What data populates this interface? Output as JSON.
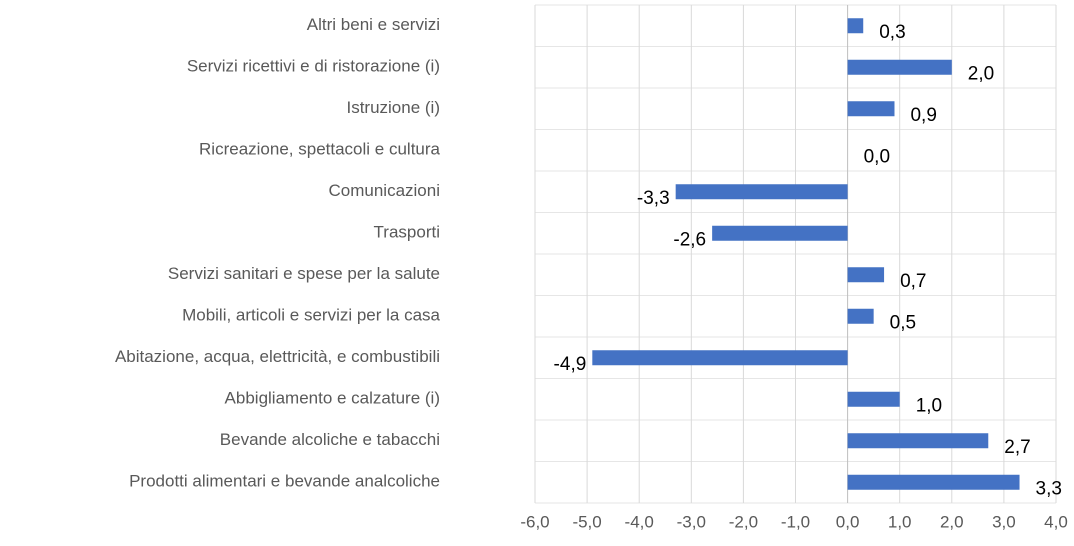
{
  "chart_data": {
    "type": "barh",
    "categories": [
      "Altri beni e servizi",
      "Servizi ricettivi e di ristorazione (i)",
      "Istruzione (i)",
      "Ricreazione, spettacoli e cultura",
      "Comunicazioni",
      "Trasporti",
      "Servizi sanitari e spese per la salute",
      "Mobili, articoli e servizi per la casa",
      "Abitazione, acqua, elettricità, e combustibili",
      "Abbigliamento e calzature (i)",
      "Bevande alcoliche e tabacchi",
      "Prodotti alimentari e bevande analcoliche"
    ],
    "values": [
      0.3,
      2.0,
      0.9,
      0.0,
      -3.3,
      -2.6,
      0.7,
      0.5,
      -4.9,
      1.0,
      2.7,
      3.3
    ],
    "value_labels": [
      "0,3",
      "2,0",
      "0,9",
      "0,0",
      "-3,3",
      "-2,6",
      "0,7",
      "0,5",
      "-4,9",
      "1,0",
      "2,7",
      "3,3"
    ],
    "color": "#4472c4",
    "xlim": [
      -6,
      4
    ],
    "xticks": [
      {
        "value": -6,
        "label": "-6,0"
      },
      {
        "value": -5,
        "label": "-5,0"
      },
      {
        "value": -4,
        "label": "-4,0"
      },
      {
        "value": -3,
        "label": "-3,0"
      },
      {
        "value": -2,
        "label": "-2,0"
      },
      {
        "value": -1,
        "label": "-1,0"
      },
      {
        "value": 0,
        "label": "0,0"
      },
      {
        "value": 1,
        "label": "1,0"
      },
      {
        "value": 2,
        "label": "2,0"
      },
      {
        "value": 3,
        "label": "3,0"
      },
      {
        "value": 4,
        "label": "4,0"
      }
    ],
    "grid": true
  }
}
